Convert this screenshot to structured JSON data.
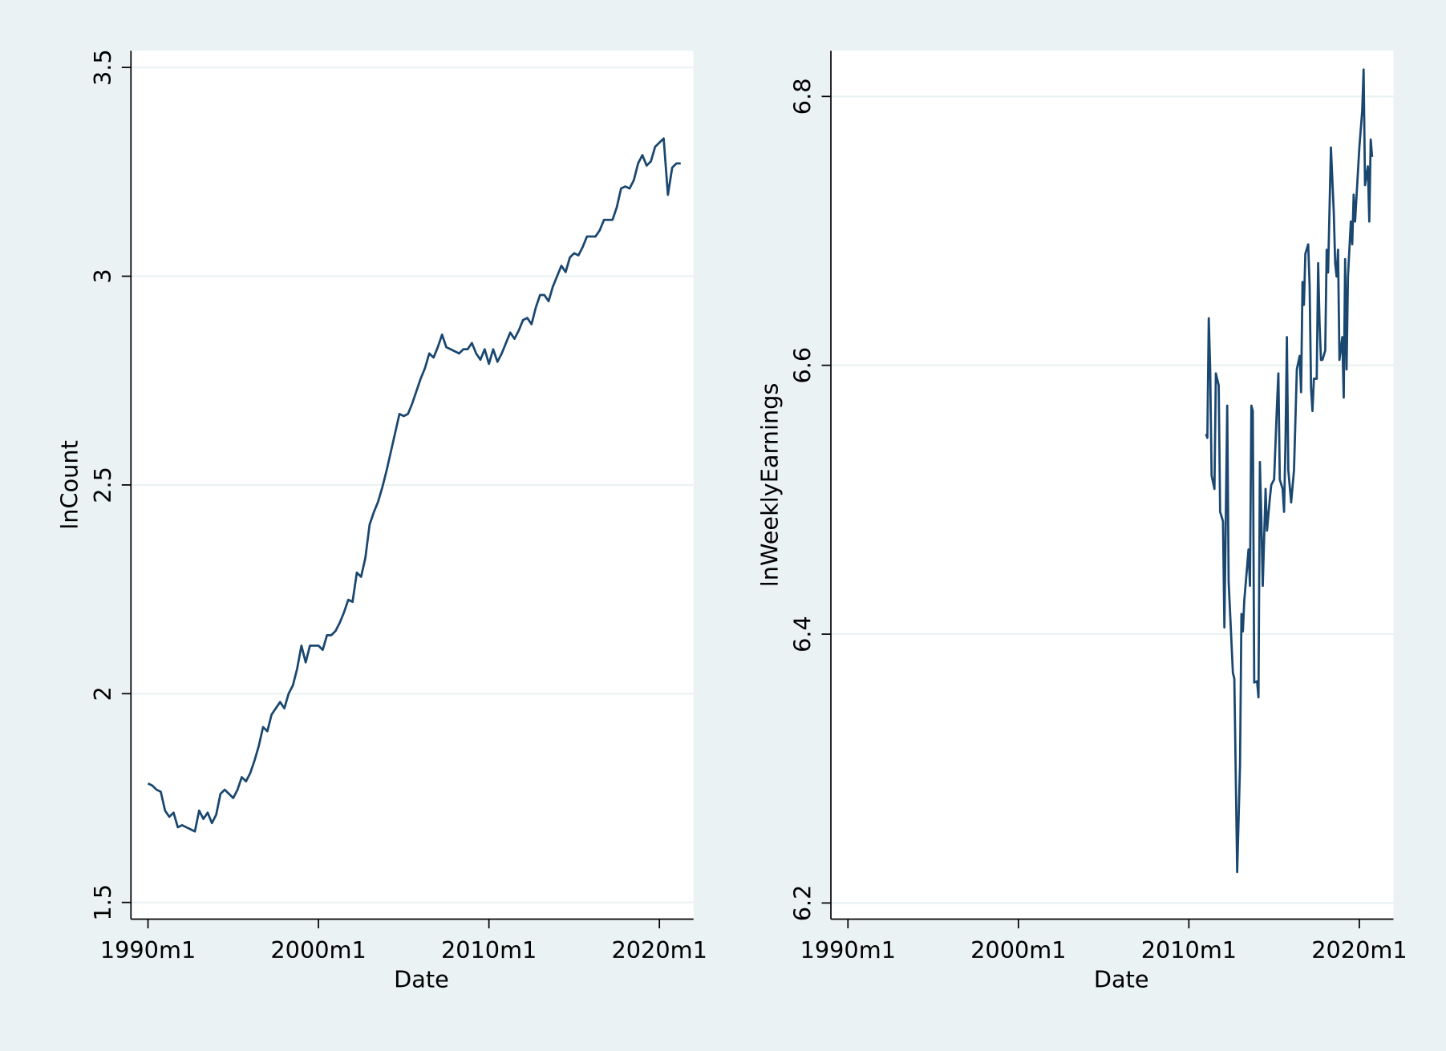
{
  "chart_data": [
    {
      "type": "line",
      "xlabel": "Date",
      "ylabel": "lnCount",
      "color": "#1a476f",
      "grid": true,
      "xlim": [
        "1989m1",
        "2022m1"
      ],
      "xticks": [
        "1990m1",
        "2000m1",
        "2010m1",
        "2020m1"
      ],
      "ylim": [
        1.46,
        3.54
      ],
      "yticks": [
        1.5,
        2,
        2.5,
        3,
        3.5
      ],
      "x": [
        "1990m1",
        "1990m4",
        "1990m7",
        "1990m10",
        "1991m1",
        "1991m4",
        "1991m7",
        "1991m10",
        "1992m1",
        "1992m4",
        "1992m7",
        "1992m10",
        "1993m1",
        "1993m4",
        "1993m7",
        "1993m10",
        "1994m1",
        "1994m4",
        "1994m7",
        "1994m10",
        "1995m1",
        "1995m4",
        "1995m7",
        "1995m10",
        "1996m1",
        "1996m4",
        "1996m7",
        "1996m10",
        "1997m1",
        "1997m4",
        "1997m7",
        "1997m10",
        "1998m1",
        "1998m4",
        "1998m7",
        "1998m10",
        "1999m1",
        "1999m4",
        "1999m7",
        "1999m10",
        "2000m1",
        "2000m4",
        "2000m7",
        "2000m10",
        "2001m1",
        "2001m4",
        "2001m7",
        "2001m10",
        "2002m1",
        "2002m4",
        "2002m7",
        "2002m10",
        "2003m1",
        "2003m4",
        "2003m7",
        "2003m10",
        "2004m1",
        "2004m4",
        "2004m7",
        "2004m10",
        "2005m1",
        "2005m4",
        "2005m7",
        "2005m10",
        "2006m1",
        "2006m4",
        "2006m7",
        "2006m10",
        "2007m1",
        "2007m4",
        "2007m7",
        "2007m10",
        "2008m1",
        "2008m4",
        "2008m7",
        "2008m10",
        "2009m1",
        "2009m4",
        "2009m7",
        "2009m10",
        "2010m1",
        "2010m4",
        "2010m7",
        "2010m10",
        "2011m1",
        "2011m4",
        "2011m7",
        "2011m10",
        "2012m1",
        "2012m4",
        "2012m7",
        "2012m10",
        "2013m1",
        "2013m4",
        "2013m7",
        "2013m10",
        "2014m1",
        "2014m4",
        "2014m7",
        "2014m10",
        "2015m1",
        "2015m4",
        "2015m7",
        "2015m10",
        "2016m1",
        "2016m4",
        "2016m7",
        "2016m10",
        "2017m1",
        "2017m4",
        "2017m7",
        "2017m10",
        "2018m1",
        "2018m4",
        "2018m7",
        "2018m10",
        "2019m1",
        "2019m4",
        "2019m7",
        "2019m10",
        "2020m1",
        "2020m4",
        "2020m7",
        "2020m10",
        "2021m1",
        "2021m4"
      ],
      "values": [
        1.785,
        1.78,
        1.77,
        1.765,
        1.72,
        1.705,
        1.715,
        1.68,
        1.685,
        1.68,
        1.675,
        1.67,
        1.72,
        1.7,
        1.715,
        1.69,
        1.71,
        1.76,
        1.77,
        1.76,
        1.75,
        1.77,
        1.8,
        1.79,
        1.81,
        1.84,
        1.875,
        1.92,
        1.91,
        1.95,
        1.965,
        1.98,
        1.965,
        2.0,
        2.02,
        2.06,
        2.115,
        2.075,
        2.115,
        2.115,
        2.115,
        2.105,
        2.14,
        2.14,
        2.15,
        2.17,
        2.195,
        2.225,
        2.22,
        2.29,
        2.28,
        2.325,
        2.405,
        2.435,
        2.46,
        2.495,
        2.535,
        2.58,
        2.625,
        2.67,
        2.665,
        2.67,
        2.695,
        2.725,
        2.755,
        2.78,
        2.815,
        2.805,
        2.83,
        2.86,
        2.83,
        2.825,
        2.82,
        2.815,
        2.825,
        2.825,
        2.84,
        2.815,
        2.8,
        2.825,
        2.79,
        2.825,
        2.795,
        2.815,
        2.84,
        2.865,
        2.85,
        2.87,
        2.895,
        2.9,
        2.885,
        2.925,
        2.955,
        2.955,
        2.94,
        2.975,
        3.0,
        3.025,
        3.01,
        3.045,
        3.055,
        3.05,
        3.07,
        3.095,
        3.095,
        3.095,
        3.11,
        3.135,
        3.135,
        3.135,
        3.165,
        3.21,
        3.215,
        3.21,
        3.23,
        3.27,
        3.29,
        3.265,
        3.275,
        3.31,
        3.32,
        3.33,
        3.195,
        3.26,
        3.27,
        3.27
      ]
    },
    {
      "type": "line",
      "xlabel": "Date",
      "ylabel": "lnWeeklyEarnings",
      "color": "#1a476f",
      "grid": true,
      "xlim": [
        "1989m1",
        "2022m1"
      ],
      "xticks": [
        "1990m1",
        "2000m1",
        "2010m1",
        "2020m1"
      ],
      "ylim": [
        6.188,
        6.834
      ],
      "yticks": [
        6.2,
        6.4,
        6.6,
        6.8
      ],
      "x": [
        "2011m1",
        "2011m2",
        "2011m3",
        "2011m4",
        "2011m5",
        "2011m7",
        "2011m8",
        "2011m10",
        "2011m11",
        "2012m1",
        "2012m2",
        "2012m4",
        "2012m5",
        "2012m8",
        "2012m9",
        "2012m11",
        "2013m1",
        "2013m2",
        "2013m3",
        "2013m4",
        "2013m7",
        "2013m8",
        "2013m9",
        "2013m10",
        "2013m11",
        "2014m1",
        "2014m2",
        "2014m3",
        "2014m4",
        "2014m5",
        "2014m7",
        "2014m8",
        "2014m10",
        "2014m11",
        "2015m1",
        "2015m3",
        "2015m4",
        "2015m5",
        "2015m7",
        "2015m8",
        "2015m9",
        "2015m10",
        "2015m11",
        "2016m1",
        "2016m3",
        "2016m4",
        "2016m5",
        "2016m7",
        "2016m8",
        "2016m9",
        "2016m10",
        "2016m11",
        "2017m1",
        "2017m2",
        "2017m3",
        "2017m4",
        "2017m5",
        "2017m7",
        "2017m8",
        "2017m9",
        "2017m10",
        "2017m11",
        "2018m1",
        "2018m2",
        "2018m3",
        "2018m5",
        "2018m7",
        "2018m8",
        "2018m9",
        "2018m10",
        "2018m11",
        "2019m1",
        "2019m2",
        "2019m3",
        "2019m4",
        "2019m5",
        "2019m7",
        "2019m8",
        "2019m9",
        "2019m10",
        "2020m1",
        "2020m3",
        "2020m4",
        "2020m5",
        "2020m7",
        "2020m8",
        "2020m9",
        "2020m10"
      ],
      "values": [
        6.549,
        6.546,
        6.635,
        6.597,
        6.518,
        6.508,
        6.594,
        6.585,
        6.491,
        6.484,
        6.405,
        6.57,
        6.439,
        6.371,
        6.367,
        6.223,
        6.302,
        6.415,
        6.402,
        6.425,
        6.463,
        6.436,
        6.57,
        6.566,
        6.364,
        6.365,
        6.353,
        6.528,
        6.487,
        6.436,
        6.508,
        6.477,
        6.501,
        6.511,
        6.515,
        6.57,
        6.594,
        6.515,
        6.508,
        6.491,
        6.542,
        6.621,
        6.522,
        6.498,
        6.522,
        6.559,
        6.597,
        6.607,
        6.58,
        6.662,
        6.645,
        6.683,
        6.69,
        6.659,
        6.583,
        6.566,
        6.59,
        6.59,
        6.676,
        6.631,
        6.604,
        6.604,
        6.611,
        6.686,
        6.669,
        6.762,
        6.714,
        6.676,
        6.666,
        6.686,
        6.604,
        6.621,
        6.576,
        6.679,
        6.597,
        6.666,
        6.707,
        6.69,
        6.727,
        6.707,
        6.762,
        6.789,
        6.82,
        6.734,
        6.748,
        6.707,
        6.768,
        6.755
      ]
    }
  ]
}
